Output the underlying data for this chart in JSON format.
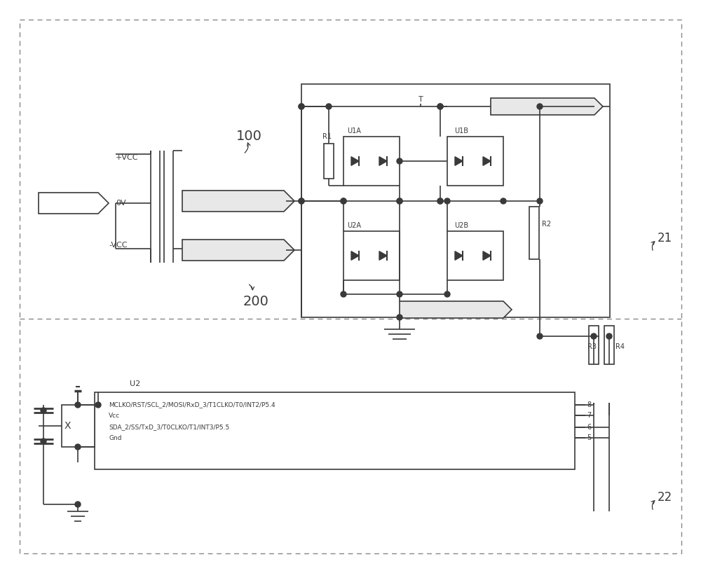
{
  "bg_color": "#ffffff",
  "lc": "#3a3a3a",
  "dash_color": "#888888",
  "label_100": "100",
  "label_200": "200",
  "vcc_plus": "+VCC",
  "vcc_zero": "0V",
  "vcc_minus": "-VCC",
  "u1a_label": "U1A",
  "u1b_label": "U1B",
  "u2a_label": "U2A",
  "u2b_label": "U2B",
  "r1_label": "R1",
  "r2_label": "R2",
  "r3_label": "R3",
  "r4_label": "R4",
  "t_label": "T",
  "u2_label": "U2",
  "box21_label": "21",
  "box22_label": "22",
  "ic_line1": "MCLKO/RST/SCL_2/MOSI/RxD_3/T1CLKO/T0/INT2/P5.4",
  "ic_line2": "Vcc",
  "ic_line3": "SDA_2/SS/TxD_3/T0CLKO/T1/INT3/P5.5",
  "ic_line4": "Gnd",
  "ic_pins_right": [
    "8",
    "7",
    "6",
    "5"
  ]
}
